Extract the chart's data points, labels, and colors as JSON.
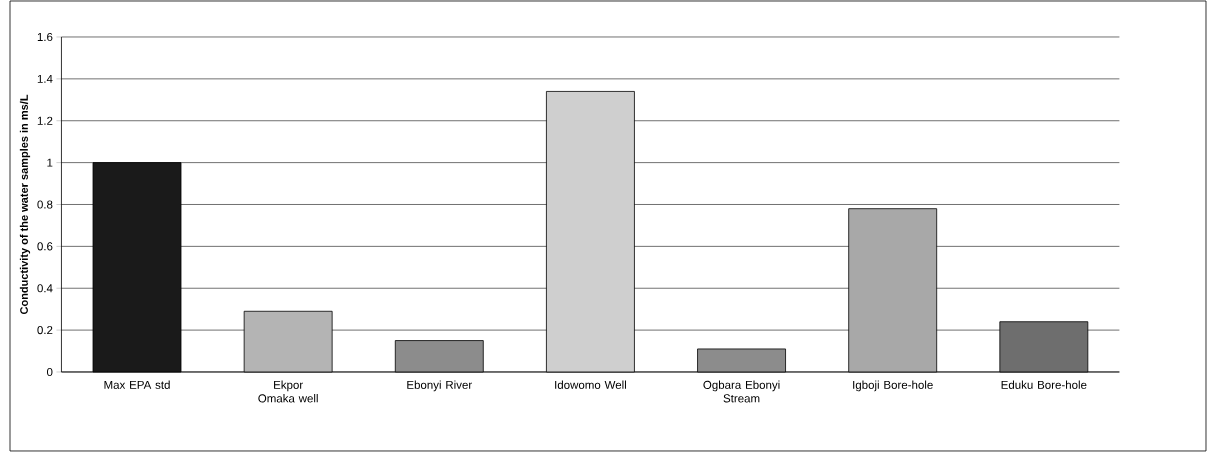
{
  "chart_data": {
    "type": "bar",
    "ylabel": "Conductivity of the water samples in ms/L",
    "categories": [
      "Max EPA std",
      "Ekpor Omaka well",
      "Ebonyi River",
      "Idowomo Well",
      "Ogbara Ebonyi Stream",
      "Igboji Bore-hole",
      "Eduku Bore-hole"
    ],
    "values": [
      1.0,
      0.29,
      0.15,
      1.34,
      0.11,
      0.78,
      0.24
    ],
    "colors": [
      "#1a1a1a",
      "#b4b4b4",
      "#8c8c8c",
      "#cfcfcf",
      "#8c8c8c",
      "#a8a8a8",
      "#6e6e6e"
    ],
    "ylim": [
      0,
      1.6
    ],
    "yticks": [
      0,
      0.2,
      0.4,
      0.6,
      0.8,
      1,
      1.2,
      1.4,
      1.6
    ],
    "grid": "y"
  }
}
